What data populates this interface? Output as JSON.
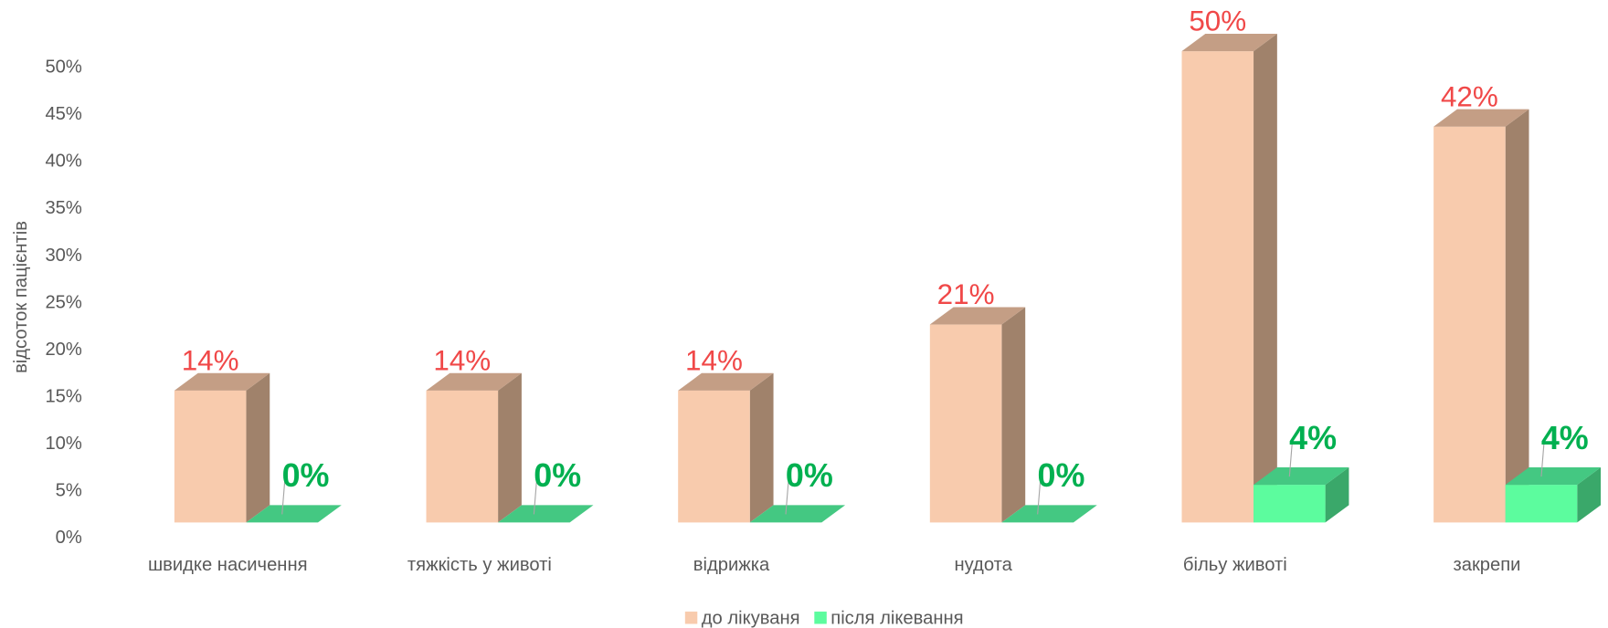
{
  "chart_data": {
    "type": "bar3d",
    "y_axis_label": "відсоток пацієнтів",
    "categories": [
      "швидке насичення",
      "тяжкість у животі",
      "відрижка",
      "нудота",
      "більу животі",
      "закрепи"
    ],
    "series": [
      {
        "name": "до лікуваня",
        "color": "#f8cbad",
        "side_color": "#a0826b",
        "top_color": "#c49e85",
        "label_color": "#f04848",
        "values": [
          14,
          14,
          14,
          21,
          50,
          42
        ],
        "value_labels": [
          "14%",
          "14%",
          "14%",
          "21%",
          "50%",
          "42%"
        ]
      },
      {
        "name": "після лікевання",
        "color": "#5cfc9e",
        "side_color": "#3aa86a",
        "top_color": "#44c882",
        "label_color": "#00b050",
        "values": [
          0,
          0,
          0,
          0,
          4,
          4
        ],
        "value_labels": [
          "0%",
          "0%",
          "0%",
          "0%",
          "4%",
          "4%"
        ]
      }
    ],
    "ylim": [
      0,
      50
    ],
    "yticks": [
      {
        "value": 0,
        "label": "0%"
      },
      {
        "value": 5,
        "label": "5%"
      },
      {
        "value": 10,
        "label": "10%"
      },
      {
        "value": 15,
        "label": "15%"
      },
      {
        "value": 20,
        "label": "20%"
      },
      {
        "value": 25,
        "label": "25%"
      },
      {
        "value": 30,
        "label": "30%"
      },
      {
        "value": 35,
        "label": "35%"
      },
      {
        "value": 40,
        "label": "40%"
      },
      {
        "value": 45,
        "label": "45%"
      },
      {
        "value": 50,
        "label": "50%"
      }
    ]
  }
}
